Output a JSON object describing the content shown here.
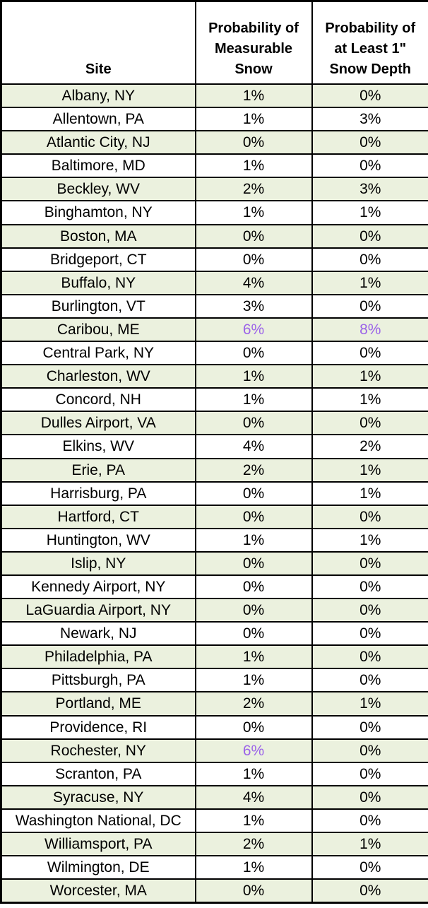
{
  "colors": {
    "row_bg": "#FFFFFF",
    "row_alt_bg": "#EBF1DE",
    "border": "#000000",
    "text": "#000000",
    "highlight_value": "#9B63E8"
  },
  "chart_data": {
    "type": "table",
    "columns": [
      "Site",
      "Probability of Measurable Snow",
      "Probability of at Least 1\" Snow Depth"
    ],
    "columns_display": [
      "Site",
      "Probability of\nMeasurable\nSnow",
      "Probability of\nat Least 1\"\nSnow Depth"
    ],
    "rows": [
      {
        "site": "Albany, NY",
        "measurable_snow": "1%",
        "snow_depth_1in": "0%",
        "measurable_highlight": false,
        "depth_highlight": false
      },
      {
        "site": "Allentown, PA",
        "measurable_snow": "1%",
        "snow_depth_1in": "3%",
        "measurable_highlight": false,
        "depth_highlight": false
      },
      {
        "site": "Atlantic City, NJ",
        "measurable_snow": "0%",
        "snow_depth_1in": "0%",
        "measurable_highlight": false,
        "depth_highlight": false
      },
      {
        "site": "Baltimore, MD",
        "measurable_snow": "1%",
        "snow_depth_1in": "0%",
        "measurable_highlight": false,
        "depth_highlight": false
      },
      {
        "site": "Beckley, WV",
        "measurable_snow": "2%",
        "snow_depth_1in": "3%",
        "measurable_highlight": false,
        "depth_highlight": false
      },
      {
        "site": "Binghamton, NY",
        "measurable_snow": "1%",
        "snow_depth_1in": "1%",
        "measurable_highlight": false,
        "depth_highlight": false
      },
      {
        "site": "Boston, MA",
        "measurable_snow": "0%",
        "snow_depth_1in": "0%",
        "measurable_highlight": false,
        "depth_highlight": false
      },
      {
        "site": "Bridgeport, CT",
        "measurable_snow": "0%",
        "snow_depth_1in": "0%",
        "measurable_highlight": false,
        "depth_highlight": false
      },
      {
        "site": "Buffalo, NY",
        "measurable_snow": "4%",
        "snow_depth_1in": "1%",
        "measurable_highlight": false,
        "depth_highlight": false
      },
      {
        "site": "Burlington, VT",
        "measurable_snow": "3%",
        "snow_depth_1in": "0%",
        "measurable_highlight": false,
        "depth_highlight": false
      },
      {
        "site": "Caribou, ME",
        "measurable_snow": "6%",
        "snow_depth_1in": "8%",
        "measurable_highlight": true,
        "depth_highlight": true
      },
      {
        "site": "Central Park, NY",
        "measurable_snow": "0%",
        "snow_depth_1in": "0%",
        "measurable_highlight": false,
        "depth_highlight": false
      },
      {
        "site": "Charleston, WV",
        "measurable_snow": "1%",
        "snow_depth_1in": "1%",
        "measurable_highlight": false,
        "depth_highlight": false
      },
      {
        "site": "Concord, NH",
        "measurable_snow": "1%",
        "snow_depth_1in": "1%",
        "measurable_highlight": false,
        "depth_highlight": false
      },
      {
        "site": "Dulles Airport, VA",
        "measurable_snow": "0%",
        "snow_depth_1in": "0%",
        "measurable_highlight": false,
        "depth_highlight": false
      },
      {
        "site": "Elkins, WV",
        "measurable_snow": "4%",
        "snow_depth_1in": "2%",
        "measurable_highlight": false,
        "depth_highlight": false
      },
      {
        "site": "Erie, PA",
        "measurable_snow": "2%",
        "snow_depth_1in": "1%",
        "measurable_highlight": false,
        "depth_highlight": false
      },
      {
        "site": "Harrisburg, PA",
        "measurable_snow": "0%",
        "snow_depth_1in": "1%",
        "measurable_highlight": false,
        "depth_highlight": false
      },
      {
        "site": "Hartford, CT",
        "measurable_snow": "0%",
        "snow_depth_1in": "0%",
        "measurable_highlight": false,
        "depth_highlight": false
      },
      {
        "site": "Huntington, WV",
        "measurable_snow": "1%",
        "snow_depth_1in": "1%",
        "measurable_highlight": false,
        "depth_highlight": false
      },
      {
        "site": "Islip, NY",
        "measurable_snow": "0%",
        "snow_depth_1in": "0%",
        "measurable_highlight": false,
        "depth_highlight": false
      },
      {
        "site": "Kennedy Airport, NY",
        "measurable_snow": "0%",
        "snow_depth_1in": "0%",
        "measurable_highlight": false,
        "depth_highlight": false
      },
      {
        "site": "LaGuardia Airport, NY",
        "measurable_snow": "0%",
        "snow_depth_1in": "0%",
        "measurable_highlight": false,
        "depth_highlight": false
      },
      {
        "site": "Newark, NJ",
        "measurable_snow": "0%",
        "snow_depth_1in": "0%",
        "measurable_highlight": false,
        "depth_highlight": false
      },
      {
        "site": "Philadelphia, PA",
        "measurable_snow": "1%",
        "snow_depth_1in": "0%",
        "measurable_highlight": false,
        "depth_highlight": false
      },
      {
        "site": "Pittsburgh, PA",
        "measurable_snow": "1%",
        "snow_depth_1in": "0%",
        "measurable_highlight": false,
        "depth_highlight": false
      },
      {
        "site": "Portland, ME",
        "measurable_snow": "2%",
        "snow_depth_1in": "1%",
        "measurable_highlight": false,
        "depth_highlight": false
      },
      {
        "site": "Providence, RI",
        "measurable_snow": "0%",
        "snow_depth_1in": "0%",
        "measurable_highlight": false,
        "depth_highlight": false
      },
      {
        "site": "Rochester, NY",
        "measurable_snow": "6%",
        "snow_depth_1in": "0%",
        "measurable_highlight": true,
        "depth_highlight": false
      },
      {
        "site": "Scranton, PA",
        "measurable_snow": "1%",
        "snow_depth_1in": "0%",
        "measurable_highlight": false,
        "depth_highlight": false
      },
      {
        "site": "Syracuse, NY",
        "measurable_snow": "4%",
        "snow_depth_1in": "0%",
        "measurable_highlight": false,
        "depth_highlight": false
      },
      {
        "site": "Washington National, DC",
        "measurable_snow": "1%",
        "snow_depth_1in": "0%",
        "measurable_highlight": false,
        "depth_highlight": false
      },
      {
        "site": "Williamsport, PA",
        "measurable_snow": "2%",
        "snow_depth_1in": "1%",
        "measurable_highlight": false,
        "depth_highlight": false
      },
      {
        "site": "Wilmington, DE",
        "measurable_snow": "1%",
        "snow_depth_1in": "0%",
        "measurable_highlight": false,
        "depth_highlight": false
      },
      {
        "site": "Worcester, MA",
        "measurable_snow": "0%",
        "snow_depth_1in": "0%",
        "measurable_highlight": false,
        "depth_highlight": false
      }
    ]
  }
}
